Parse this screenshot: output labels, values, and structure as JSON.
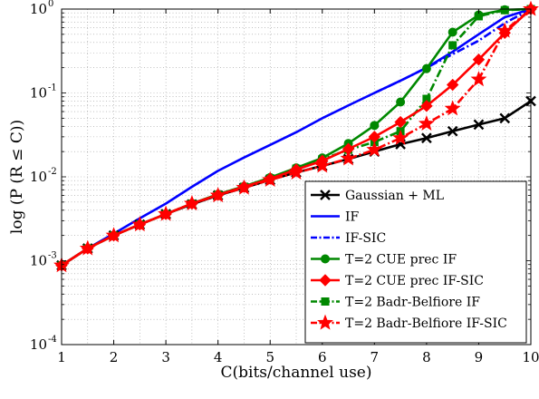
{
  "chart_data": {
    "type": "line",
    "title": "",
    "xlabel": "C(bits/channel use)",
    "ylabel": "log (P (R ≤ C))",
    "xlim": [
      1,
      10
    ],
    "ylim": [
      0.0001,
      1
    ],
    "yscale": "log",
    "grid": true,
    "legend_position": "bottom-right",
    "x_ticks": [
      1,
      2,
      3,
      4,
      5,
      6,
      7,
      8,
      9,
      10
    ],
    "y_ticks": [
      {
        "base": "10",
        "exp": "-4",
        "value": 0.0001
      },
      {
        "base": "10",
        "exp": "-3",
        "value": 0.001
      },
      {
        "base": "10",
        "exp": "-2",
        "value": 0.01
      },
      {
        "base": "10",
        "exp": "-1",
        "value": 0.1
      },
      {
        "base": "10",
        "exp": "0",
        "value": 1
      }
    ],
    "series": [
      {
        "name": "Gaussian + ML",
        "color": "#000000",
        "dash": "solid",
        "marker": "x",
        "x": [
          1,
          1.5,
          2,
          2.5,
          3,
          3.5,
          4,
          4.5,
          5,
          5.5,
          6,
          6.5,
          7,
          7.5,
          8,
          8.5,
          9,
          9.5,
          10
        ],
        "y": [
          0.00088,
          0.0014,
          0.002,
          0.0027,
          0.0036,
          0.0047,
          0.006,
          0.0074,
          0.0092,
          0.0113,
          0.0135,
          0.0163,
          0.02,
          0.0245,
          0.029,
          0.035,
          0.042,
          0.05,
          0.08
        ]
      },
      {
        "name": "IF",
        "color": "#0000ff",
        "dash": "solid",
        "marker": "none",
        "x": [
          1,
          1.5,
          2,
          2.5,
          3,
          3.5,
          4,
          4.5,
          5,
          5.5,
          6,
          6.5,
          7,
          7.5,
          8,
          8.5,
          9,
          9.5,
          10
        ],
        "y": [
          0.00088,
          0.0014,
          0.0021,
          0.0032,
          0.0048,
          0.0076,
          0.0118,
          0.017,
          0.024,
          0.034,
          0.05,
          0.071,
          0.1,
          0.14,
          0.2,
          0.31,
          0.5,
          0.8,
          1.0
        ]
      },
      {
        "name": "IF-SIC",
        "color": "#0000ff",
        "dash": "dashdot",
        "marker": "none",
        "x": [
          7,
          7.5,
          8,
          8.5,
          9,
          9.5,
          10
        ],
        "y": [
          0.1,
          0.14,
          0.2,
          0.29,
          0.42,
          0.68,
          1.0
        ]
      },
      {
        "name": "T=2 CUE prec IF",
        "color": "#008800",
        "dash": "solid",
        "marker": "circle",
        "x": [
          1,
          1.5,
          2,
          2.5,
          3,
          3.5,
          4,
          4.5,
          5,
          5.5,
          6,
          6.5,
          7,
          7.5,
          8,
          8.5,
          9,
          9.5,
          10
        ],
        "y": [
          0.00088,
          0.0014,
          0.002,
          0.0027,
          0.0036,
          0.0048,
          0.0062,
          0.0077,
          0.0098,
          0.0128,
          0.0168,
          0.025,
          0.041,
          0.078,
          0.195,
          0.53,
          0.85,
          0.98,
          1.0
        ]
      },
      {
        "name": "T=2 CUE prec IF-SIC",
        "color": "#ff0000",
        "dash": "solid",
        "marker": "diamond",
        "x": [
          1,
          1.5,
          2,
          2.5,
          3,
          3.5,
          4,
          4.5,
          5,
          5.5,
          6,
          6.5,
          7,
          7.5,
          8,
          8.5,
          9,
          9.5,
          10
        ],
        "y": [
          0.00088,
          0.0014,
          0.002,
          0.0027,
          0.0036,
          0.0048,
          0.0061,
          0.0076,
          0.0095,
          0.0122,
          0.0155,
          0.0215,
          0.03,
          0.045,
          0.07,
          0.125,
          0.25,
          0.52,
          1.0
        ]
      },
      {
        "name": "T=2 Badr-Belfiore IF",
        "color": "#008800",
        "dash": "dashdot",
        "marker": "square",
        "x": [
          1,
          1.5,
          2,
          2.5,
          3,
          3.5,
          4,
          4.5,
          5,
          5.5,
          6,
          6.5,
          7,
          7.5,
          8,
          8.5,
          9,
          9.5,
          10
        ],
        "y": [
          0.00088,
          0.0014,
          0.002,
          0.0027,
          0.0036,
          0.0048,
          0.0061,
          0.0076,
          0.0096,
          0.0125,
          0.0162,
          0.021,
          0.026,
          0.035,
          0.085,
          0.37,
          0.82,
          0.97,
          1.0
        ]
      },
      {
        "name": "T=2 Badr-Belfiore IF-SIC",
        "color": "#ff0000",
        "dash": "dashdot",
        "marker": "star",
        "x": [
          1,
          1.5,
          2,
          2.5,
          3,
          3.5,
          4,
          4.5,
          5,
          5.5,
          6,
          6.5,
          7,
          7.5,
          8,
          8.5,
          9,
          9.5,
          10
        ],
        "y": [
          0.00088,
          0.0014,
          0.002,
          0.0027,
          0.0036,
          0.0048,
          0.006,
          0.0074,
          0.0092,
          0.0112,
          0.0135,
          0.0165,
          0.021,
          0.029,
          0.043,
          0.065,
          0.145,
          0.55,
          1.0
        ]
      }
    ]
  }
}
